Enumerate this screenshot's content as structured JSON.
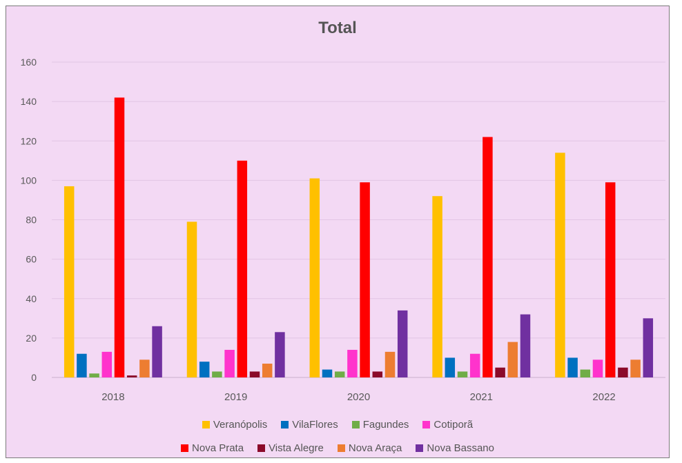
{
  "chart_data": {
    "type": "bar",
    "title": "Total",
    "xlabel": "",
    "ylabel": "",
    "ylim": [
      0,
      160
    ],
    "yticks": [
      0,
      20,
      40,
      60,
      80,
      100,
      120,
      140,
      160
    ],
    "grid": true,
    "legend_position": "bottom",
    "categories": [
      "2018",
      "2019",
      "2020",
      "2021",
      "2022"
    ],
    "series": [
      {
        "name": "Veranópolis",
        "color": "#ffc000",
        "values": [
          97,
          79,
          101,
          92,
          114
        ]
      },
      {
        "name": "VilaFlores",
        "color": "#0070c0",
        "values": [
          12,
          8,
          4,
          10,
          10
        ]
      },
      {
        "name": "Fagundes",
        "color": "#70ad47",
        "values": [
          2,
          3,
          3,
          3,
          4
        ]
      },
      {
        "name": "Cotiporã",
        "color": "#ff33cc",
        "values": [
          13,
          14,
          14,
          12,
          9
        ]
      },
      {
        "name": "Nova Prata",
        "color": "#ff0000",
        "values": [
          142,
          110,
          99,
          122,
          99
        ]
      },
      {
        "name": "Vista Alegre",
        "color": "#8b0a2a",
        "values": [
          1,
          3,
          3,
          5,
          5
        ]
      },
      {
        "name": "Nova Araça",
        "color": "#ed7d31",
        "values": [
          9,
          7,
          13,
          18,
          9
        ]
      },
      {
        "name": "Nova Bassano",
        "color": "#7030a0",
        "values": [
          26,
          23,
          34,
          32,
          30
        ]
      }
    ]
  }
}
